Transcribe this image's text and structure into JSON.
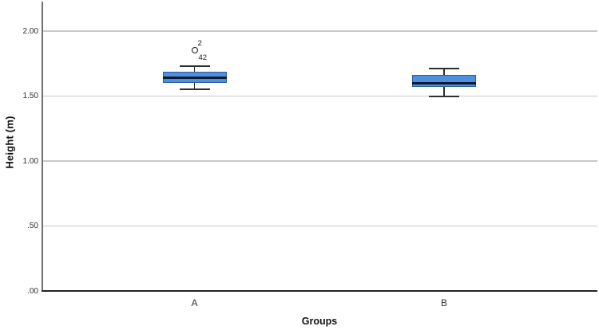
{
  "chart_data": {
    "type": "boxplot",
    "title": "",
    "xlabel": "Groups",
    "ylabel": "Height (m)",
    "ylim": [
      0,
      2.05
    ],
    "grid": "horizontal-gridlines-on",
    "legend": "none",
    "yticks": [
      {
        "value": 0.0,
        "label": ".00"
      },
      {
        "value": 0.5,
        "label": ".50"
      },
      {
        "value": 1.0,
        "label": "1.00"
      },
      {
        "value": 1.5,
        "label": "1.50"
      },
      {
        "value": 2.0,
        "label": "2.00"
      }
    ],
    "categories": [
      "A",
      "B"
    ],
    "boxes": [
      {
        "category": "A",
        "whisker_low": 1.55,
        "q1": 1.6,
        "median": 1.64,
        "q3": 1.69,
        "whisker_high": 1.73,
        "outliers": [
          {
            "value": 1.85,
            "case_labels": [
              "2",
              "42"
            ]
          }
        ]
      },
      {
        "category": "B",
        "whisker_low": 1.5,
        "q1": 1.57,
        "median": 1.6,
        "q3": 1.66,
        "whisker_high": 1.71,
        "outliers": []
      }
    ],
    "colors": {
      "box_fill": "#4B90E2",
      "box_border": "#2B5F9E",
      "median_line": "#10182B",
      "whisker": "#2e2e2e",
      "gridline": "#c9c9c9",
      "y_axis_line": "#707070",
      "x_axis_line": "#242424",
      "outlier_stroke": "#1a1a1a"
    }
  }
}
